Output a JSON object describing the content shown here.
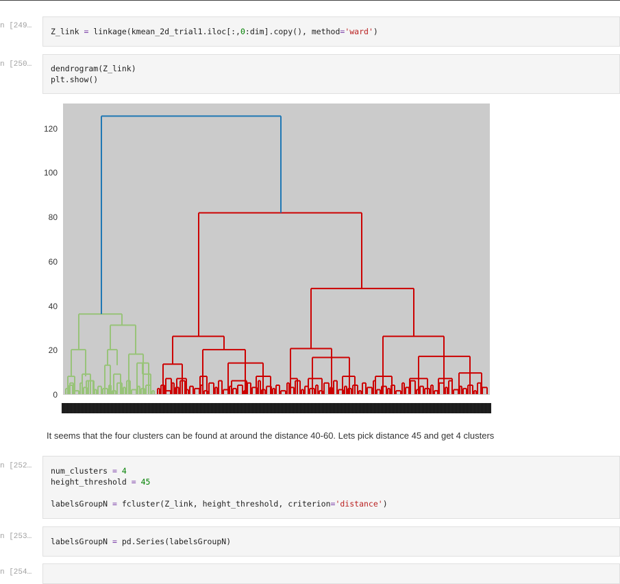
{
  "cells": [
    {
      "prompt": "n [249…",
      "lines": [
        [
          [
            "fn",
            "Z_link "
          ],
          [
            "op",
            "="
          ],
          [
            "fn",
            " linkage(kmean_2d_trial1.iloc[:,"
          ],
          [
            "num",
            "0"
          ],
          [
            "fn",
            ":dim].copy(), method"
          ],
          [
            "op",
            "="
          ],
          [
            "str",
            "'ward'"
          ],
          [
            "fn",
            ")"
          ]
        ]
      ]
    },
    {
      "prompt": "n [250…",
      "lines": [
        [
          [
            "fn",
            "dendrogram(Z_link)"
          ]
        ],
        [
          [
            "fn",
            "plt.show()"
          ]
        ]
      ]
    },
    {
      "prompt": "n [252…",
      "lines": [
        [
          [
            "fn",
            "num_clusters "
          ],
          [
            "op",
            "="
          ],
          [
            "num",
            " 4"
          ]
        ],
        [
          [
            "fn",
            "height_threshold "
          ],
          [
            "op",
            "="
          ],
          [
            "num",
            " 45"
          ]
        ],
        [
          [
            "fn",
            ""
          ]
        ],
        [
          [
            "fn",
            "labelsGroupN "
          ],
          [
            "op",
            "="
          ],
          [
            "fn",
            " fcluster(Z_link, height_threshold, criterion"
          ],
          [
            "op",
            "="
          ],
          [
            "str",
            "'distance'"
          ],
          [
            "fn",
            ")"
          ]
        ]
      ]
    },
    {
      "prompt": "n [253…",
      "lines": [
        [
          [
            "fn",
            "labelsGroupN "
          ],
          [
            "op",
            "="
          ],
          [
            "fn",
            " pd.Series(labelsGroupN)"
          ]
        ]
      ]
    },
    {
      "prompt": "n [254…",
      "lines": []
    }
  ],
  "markdown": "It seems that the four clusters can be found at around the distance 40-60. Lets pick distance 45 and get 4 clusters",
  "chart_data": {
    "type": "dendrogram",
    "y_ticks": [
      "0",
      "20",
      "40",
      "60",
      "80",
      "100",
      "120"
    ],
    "ylim": [
      0,
      130
    ],
    "colors": {
      "top": "#1f77b4",
      "green": "#98c379",
      "red": "#cc0000",
      "plot_bg": "#cbcbcb"
    },
    "links": [
      {
        "left": "green cluster",
        "right": "red cluster",
        "height": 125,
        "color": "top"
      },
      {
        "left": "red subcluster A",
        "right": "red subcluster B",
        "height": 81.5,
        "color": "red"
      },
      {
        "left": "red B1",
        "right": "red B2",
        "height": 47.5,
        "color": "red"
      },
      {
        "left": "green G1",
        "right": "green G2",
        "height": 36,
        "color": "green"
      },
      {
        "left": "green G2a",
        "right": "green G2b",
        "height": 31,
        "color": "green"
      },
      {
        "left": "red A1",
        "right": "red A2",
        "height": 26,
        "color": "red"
      },
      {
        "left": "red B2a",
        "right": "red B2b",
        "height": 26,
        "color": "red"
      },
      {
        "left": "red B1a",
        "right": "red B1b",
        "height": 20.5,
        "color": "red"
      },
      {
        "left": "red A2a",
        "right": "red A2b",
        "height": 20,
        "color": "red"
      },
      {
        "left": "red B2b1",
        "right": "red B2b2",
        "height": 17,
        "color": "red"
      },
      {
        "left": "red B1b1",
        "right": "red B1b2",
        "height": 16.5,
        "color": "red"
      },
      {
        "left": "red A2b1",
        "right": "red A2b2",
        "height": 14,
        "color": "red"
      },
      {
        "left": "red A1a",
        "right": "red A1b",
        "height": 13.5,
        "color": "red"
      },
      {
        "left": "red B2b2a",
        "right": "red B2b2b",
        "height": 9.5,
        "color": "red"
      }
    ]
  }
}
